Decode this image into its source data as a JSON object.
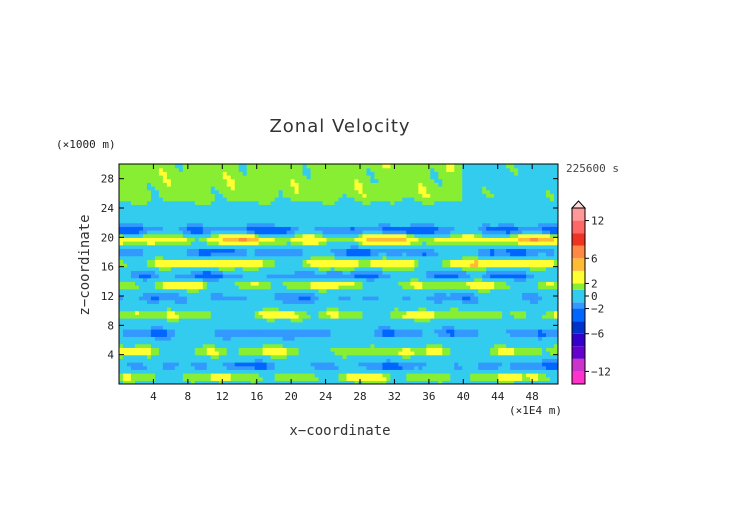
{
  "chart_data": {
    "type": "heatmap",
    "title": "Zonal Velocity",
    "xlabel": "x−coordinate",
    "ylabel": "z−coordinate",
    "x_unit_label": "(×1E4 m)",
    "y_unit_label": "(×1000 m)",
    "time_label": "225600 s",
    "xlim": [
      0,
      51
    ],
    "ylim": [
      0,
      30
    ],
    "x_ticks": [
      4,
      8,
      12,
      16,
      20,
      24,
      28,
      32,
      36,
      40,
      44,
      48
    ],
    "y_ticks": [
      4,
      8,
      12,
      16,
      20,
      24,
      28
    ],
    "colorbar": {
      "tick_labels": [
        "12",
        "6",
        "2",
        "0",
        "−2",
        "−6",
        "−12"
      ],
      "tick_values": [
        12,
        6,
        2,
        0,
        -2,
        -6,
        -12
      ],
      "levels": [
        -14,
        -12,
        -10,
        -8,
        -6,
        -4,
        -2,
        -1,
        1,
        2,
        4,
        6,
        8,
        10,
        12,
        14
      ],
      "colors": [
        "#ff33cc",
        "#cc33cc",
        "#6600cc",
        "#3300cc",
        "#0033cc",
        "#0066ff",
        "#3399ff",
        "#33ccee",
        "#88ee33",
        "#ffff33",
        "#ffbb33",
        "#ff8844",
        "#ee3322",
        "#ff6666",
        "#ff9999",
        "#ffbbbb"
      ],
      "extend": "both"
    },
    "bands": [
      {
        "z": 21.0,
        "amplitude": -4.0
      },
      {
        "z": 19.8,
        "amplitude": 6.0
      },
      {
        "z": 18.0,
        "amplitude": -3.0
      },
      {
        "z": 16.5,
        "amplitude": 5.0
      },
      {
        "z": 14.8,
        "amplitude": -3.0
      },
      {
        "z": 13.6,
        "amplitude": 3.5
      },
      {
        "z": 11.8,
        "amplitude": -2.0
      },
      {
        "z": 9.5,
        "amplitude": 3.0
      },
      {
        "z": 7.0,
        "amplitude": -2.5
      },
      {
        "z": 4.5,
        "amplitude": 3.0
      },
      {
        "z": 2.5,
        "amplitude": -2.5
      },
      {
        "z": 1.0,
        "amplitude": 3.0
      }
    ],
    "upper_layer": {
      "z_from": 24,
      "z_to": 30,
      "value_west": 1.5,
      "value_east": 0.5
    }
  }
}
